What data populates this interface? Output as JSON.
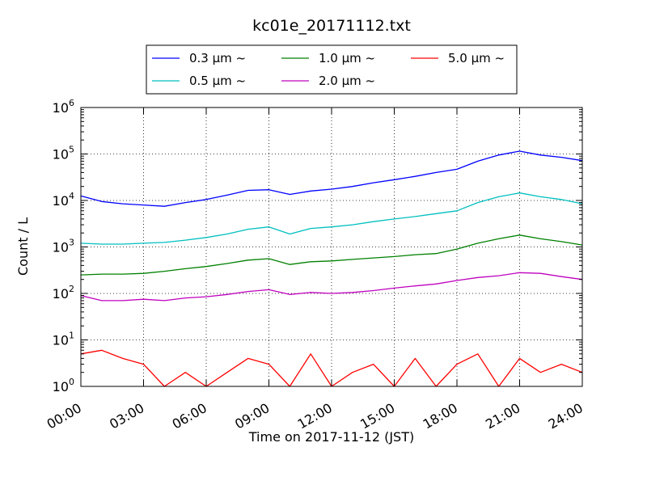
{
  "chart_data": {
    "type": "line",
    "title": "kc01e_20171112.txt",
    "xlabel": "Time on 2017-11-12 (JST)",
    "ylabel": "Count / L",
    "yscale": "log",
    "ylim": [
      1,
      1000000
    ],
    "xlim": [
      "00:00",
      "24:00"
    ],
    "grid": true,
    "legend_position": "top",
    "x_ticks": [
      "00:00",
      "03:00",
      "06:00",
      "09:00",
      "12:00",
      "15:00",
      "18:00",
      "21:00",
      "24:00"
    ],
    "y_ticks": [
      {
        "value": 1,
        "base": "10",
        "exp": "0"
      },
      {
        "value": 10,
        "base": "10",
        "exp": "1"
      },
      {
        "value": 100,
        "base": "10",
        "exp": "2"
      },
      {
        "value": 1000,
        "base": "10",
        "exp": "3"
      },
      {
        "value": 10000,
        "base": "10",
        "exp": "4"
      },
      {
        "value": 100000,
        "base": "10",
        "exp": "5"
      },
      {
        "value": 1000000,
        "base": "10",
        "exp": "6"
      }
    ],
    "x_hours": [
      0,
      1,
      2,
      3,
      4,
      5,
      6,
      7,
      8,
      9,
      10,
      11,
      12,
      13,
      14,
      15,
      16,
      17,
      18,
      19,
      20,
      21,
      22,
      23,
      24
    ],
    "series": [
      {
        "name": "0.3 μm ~",
        "color": "#0000ff",
        "values": [
          12500,
          9500,
          8500,
          8000,
          7500,
          9000,
          10500,
          13000,
          16500,
          17000,
          13500,
          16000,
          17500,
          20000,
          24000,
          28000,
          33000,
          40000,
          47000,
          70000,
          95000,
          115000,
          95000,
          85000,
          72000
        ]
      },
      {
        "name": "0.5 μm ~",
        "color": "#00bfbf",
        "values": [
          1200,
          1150,
          1150,
          1200,
          1250,
          1400,
          1600,
          1900,
          2400,
          2700,
          1900,
          2500,
          2700,
          3000,
          3500,
          4000,
          4500,
          5200,
          6000,
          9000,
          12000,
          14500,
          12000,
          10500,
          8500
        ]
      },
      {
        "name": "1.0 μm ~",
        "color": "#008000",
        "values": [
          250,
          260,
          260,
          270,
          300,
          340,
          380,
          440,
          520,
          560,
          420,
          480,
          500,
          540,
          580,
          620,
          680,
          720,
          900,
          1200,
          1500,
          1800,
          1500,
          1300,
          1100
        ]
      },
      {
        "name": "2.0 μm ~",
        "color": "#bf00bf",
        "values": [
          90,
          70,
          70,
          75,
          70,
          80,
          85,
          95,
          110,
          120,
          95,
          105,
          100,
          105,
          115,
          130,
          145,
          160,
          190,
          220,
          240,
          280,
          270,
          230,
          200
        ]
      },
      {
        "name": "5.0 μm ~",
        "color": "#ff0000",
        "values": [
          5,
          6,
          4,
          3,
          1,
          2,
          1,
          2,
          4,
          3,
          1,
          5,
          1,
          2,
          3,
          1,
          4,
          1,
          3,
          5,
          1,
          4,
          2,
          3,
          2
        ]
      }
    ]
  }
}
